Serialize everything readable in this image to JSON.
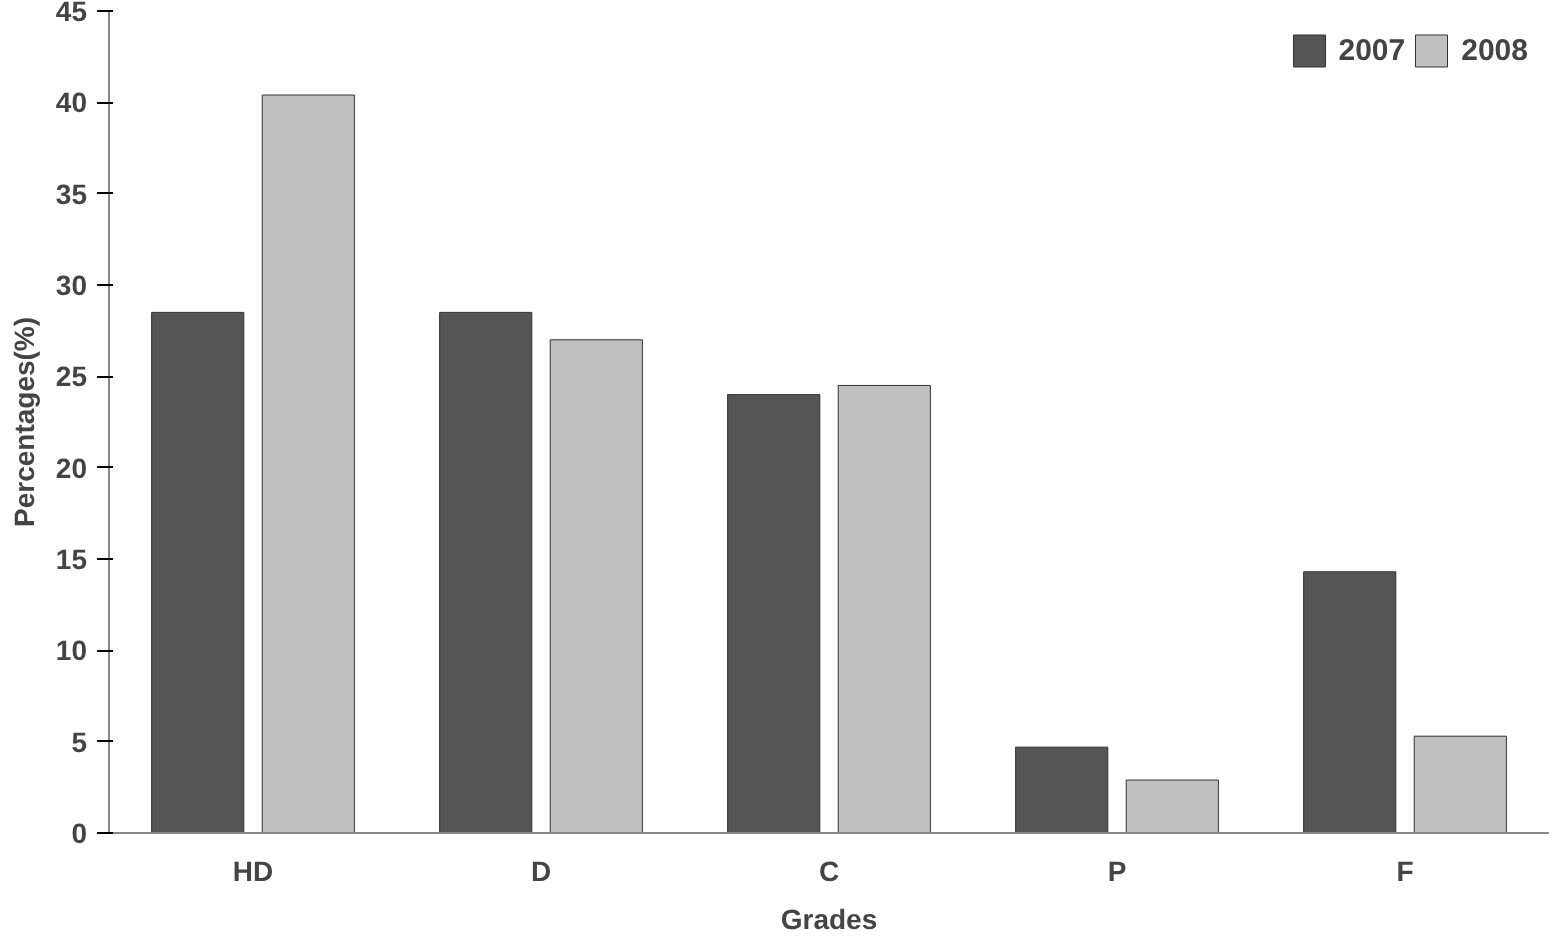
{
  "chart_data": {
    "type": "bar",
    "xlabel": "Grades",
    "ylabel": "Percentages(%)",
    "categories": [
      "HD",
      "D",
      "C",
      "P",
      "F"
    ],
    "series": [
      {
        "name": "2007",
        "color": "#555555",
        "values": [
          28.5,
          28.5,
          24.0,
          4.7,
          14.3
        ]
      },
      {
        "name": "2008",
        "color": "#c0c0c0",
        "values": [
          40.4,
          27.0,
          24.5,
          2.9,
          5.3
        ]
      }
    ],
    "ylim": [
      0,
      45
    ],
    "yticks": [
      0,
      5,
      10,
      15,
      20,
      25,
      30,
      35,
      40,
      45
    ],
    "grid": false,
    "legend": "top right"
  }
}
